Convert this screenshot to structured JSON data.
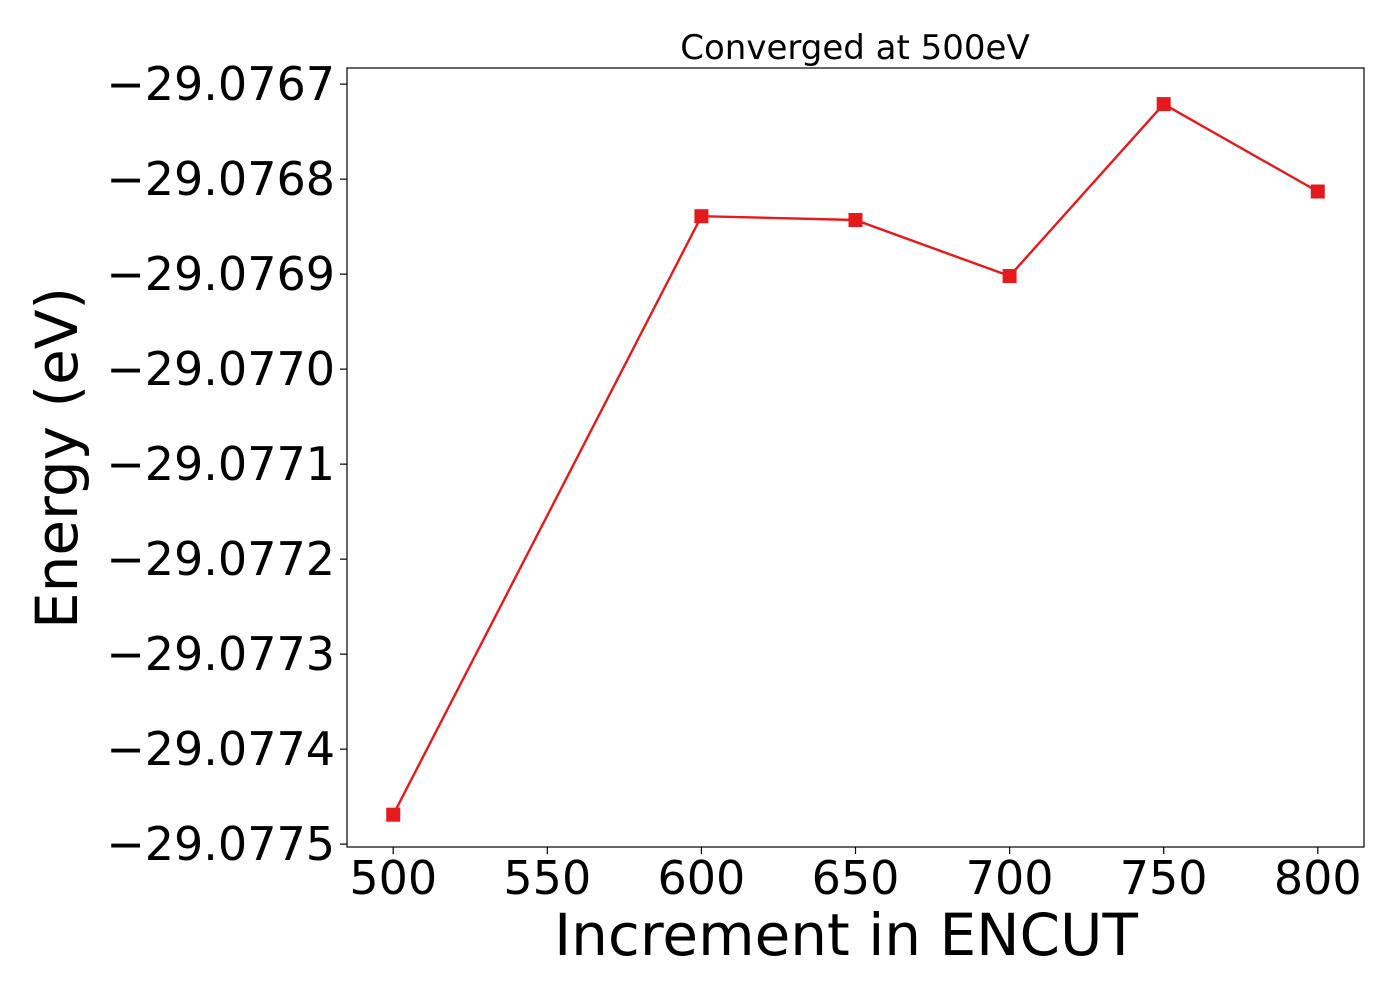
{
  "chart_data": {
    "type": "line",
    "title": "Converged at 500eV",
    "xlabel": "Increment in ENCUT",
    "ylabel": "Energy (eV)",
    "x": [
      500,
      600,
      650,
      700,
      750,
      800
    ],
    "series": [
      {
        "values": [
          -29.077469,
          -29.076839,
          -29.076843,
          -29.076902,
          -29.076721,
          -29.076813
        ],
        "color": "#e41a1c",
        "marker": "square"
      }
    ],
    "xticks": [
      "500",
      "550",
      "600",
      "650",
      "700",
      "750",
      "800"
    ],
    "yticks": [
      "−29.0767",
      "−29.0768",
      "−29.0769",
      "−29.0770",
      "−29.0771",
      "−29.0772",
      "−29.0773",
      "−29.0774",
      "−29.0775"
    ],
    "xlim": [
      485,
      815
    ],
    "ylim": [
      -29.077503,
      -29.076683
    ],
    "grid": false,
    "legend": "none"
  }
}
